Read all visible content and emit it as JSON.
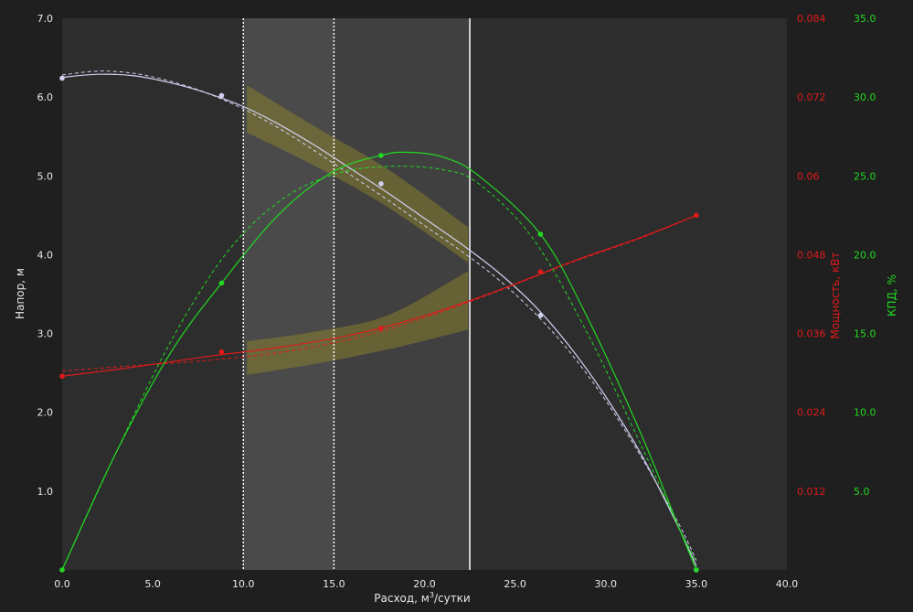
{
  "chart_data": {
    "type": "line",
    "xlabel_prefix": "Расход, м",
    "xlabel_sup": "3",
    "xlabel_suffix": "/сутки",
    "ylabel_head": "Напор, м",
    "ylabel_power": "Мощность, кВт",
    "ylabel_eff": "КПД, %",
    "xlim": [
      0,
      40
    ],
    "ylim_head": [
      0,
      7
    ],
    "ylim_power": [
      0,
      0.084
    ],
    "ylim_eff": [
      0,
      35
    ],
    "x_ticks": [
      "0.0",
      "5.0",
      "10.0",
      "15.0",
      "20.0",
      "25.0",
      "30.0",
      "35.0",
      "40.0"
    ],
    "head_ticks": [
      "1.0",
      "2.0",
      "3.0",
      "4.0",
      "5.0",
      "6.0",
      "7.0"
    ],
    "power_ticks": [
      "0.012",
      "0.024",
      "0.036",
      "0.048",
      "0.06",
      "0.072",
      "0.084"
    ],
    "eff_ticks": [
      "5.0",
      "10.0",
      "15.0",
      "20.0",
      "25.0",
      "30.0",
      "35.0"
    ],
    "vertical_lines": [
      10,
      15,
      22.5
    ],
    "shaded_region": [
      10,
      22.5
    ],
    "highlight_region": [
      10,
      15
    ],
    "series": [
      {
        "key": "head",
        "color": "#d0d0f0",
        "axis": "head",
        "points": [
          [
            0,
            6.24
          ],
          [
            8.8,
            6.02
          ],
          [
            17.6,
            4.9
          ],
          [
            26.4,
            3.23
          ],
          [
            35.0,
            0.0
          ]
        ],
        "curve": [
          [
            0,
            6.25
          ],
          [
            2,
            6.29
          ],
          [
            4,
            6.27
          ],
          [
            6,
            6.18
          ],
          [
            8,
            6.05
          ],
          [
            10,
            5.88
          ],
          [
            12,
            5.65
          ],
          [
            14,
            5.38
          ],
          [
            16,
            5.08
          ],
          [
            18,
            4.78
          ],
          [
            20,
            4.46
          ],
          [
            22,
            4.14
          ],
          [
            24,
            3.79
          ],
          [
            26,
            3.37
          ],
          [
            28,
            2.84
          ],
          [
            30,
            2.2
          ],
          [
            32,
            1.45
          ],
          [
            34,
            0.55
          ],
          [
            35,
            0.05
          ]
        ],
        "fit": [
          [
            0,
            6.28
          ],
          [
            2,
            6.33
          ],
          [
            4,
            6.3
          ],
          [
            6,
            6.2
          ],
          [
            8,
            6.05
          ],
          [
            10,
            5.85
          ],
          [
            12,
            5.6
          ],
          [
            14,
            5.31
          ],
          [
            16,
            5.0
          ],
          [
            18,
            4.69
          ],
          [
            20,
            4.37
          ],
          [
            22,
            4.05
          ],
          [
            24,
            3.7
          ],
          [
            26,
            3.28
          ],
          [
            28,
            2.77
          ],
          [
            30,
            2.15
          ],
          [
            32,
            1.42
          ],
          [
            34,
            0.6
          ],
          [
            35,
            0.12
          ]
        ]
      },
      {
        "key": "power",
        "color": "#e01a1a",
        "axis": "power",
        "points": [
          [
            0,
            0.0295
          ],
          [
            8.8,
            0.0332
          ],
          [
            17.6,
            0.0368
          ],
          [
            26.4,
            0.0454
          ],
          [
            35.0,
            0.054
          ]
        ],
        "curve": [
          [
            0,
            0.0295
          ],
          [
            4,
            0.0309
          ],
          [
            8,
            0.0325
          ],
          [
            12,
            0.0339
          ],
          [
            16,
            0.0358
          ],
          [
            20,
            0.0387
          ],
          [
            24,
            0.0425
          ],
          [
            28,
            0.0468
          ],
          [
            32,
            0.0507
          ],
          [
            35,
            0.054
          ]
        ],
        "fit": [
          [
            0,
            0.0303
          ],
          [
            4,
            0.0311
          ],
          [
            8,
            0.0319
          ],
          [
            12,
            0.0331
          ],
          [
            16,
            0.0352
          ],
          [
            20,
            0.0384
          ],
          [
            24,
            0.0424
          ],
          [
            28,
            0.0467
          ],
          [
            32,
            0.0506
          ],
          [
            35,
            0.054
          ]
        ]
      },
      {
        "key": "eff",
        "color": "#22d822",
        "axis": "eff",
        "points": [
          [
            0,
            0.0
          ],
          [
            8.8,
            18.2
          ],
          [
            17.6,
            26.3
          ],
          [
            26.4,
            21.3
          ],
          [
            35.0,
            0.0
          ]
        ],
        "curve": [
          [
            0,
            0
          ],
          [
            3,
            7.5
          ],
          [
            6,
            13.8
          ],
          [
            8.8,
            18.2
          ],
          [
            12,
            22.6
          ],
          [
            15,
            25.3
          ],
          [
            17.6,
            26.3
          ],
          [
            19,
            26.5
          ],
          [
            21,
            26.2
          ],
          [
            23,
            25.0
          ],
          [
            26.4,
            21.3
          ],
          [
            29,
            16.0
          ],
          [
            32,
            8.5
          ],
          [
            34,
            2.8
          ],
          [
            35,
            0
          ]
        ],
        "fit": [
          [
            0,
            0
          ],
          [
            3,
            7.5
          ],
          [
            6,
            14.5
          ],
          [
            9,
            20.0
          ],
          [
            12,
            23.4
          ],
          [
            15,
            25.1
          ],
          [
            18,
            25.6
          ],
          [
            21,
            25.4
          ],
          [
            23,
            24.5
          ],
          [
            26,
            21.0
          ],
          [
            29,
            15.0
          ],
          [
            32,
            7.8
          ],
          [
            34,
            2.8
          ],
          [
            35,
            0.5
          ]
        ]
      }
    ],
    "tolerance_bands": [
      {
        "axis": "head",
        "lower": [
          [
            10.2,
            5.55
          ],
          [
            14,
            5.12
          ],
          [
            18,
            4.6
          ],
          [
            22.4,
            3.9
          ]
        ],
        "upper": [
          [
            10.2,
            6.15
          ],
          [
            14,
            5.62
          ],
          [
            18,
            5.08
          ],
          [
            22.4,
            4.35
          ]
        ]
      },
      {
        "axis": "power",
        "lower": [
          [
            10.2,
            0.0297
          ],
          [
            14,
            0.0314
          ],
          [
            18,
            0.0336
          ],
          [
            22.4,
            0.0366
          ]
        ],
        "upper": [
          [
            10.2,
            0.0348
          ],
          [
            14,
            0.0363
          ],
          [
            18,
            0.0388
          ],
          [
            22.4,
            0.0455
          ]
        ]
      }
    ]
  }
}
